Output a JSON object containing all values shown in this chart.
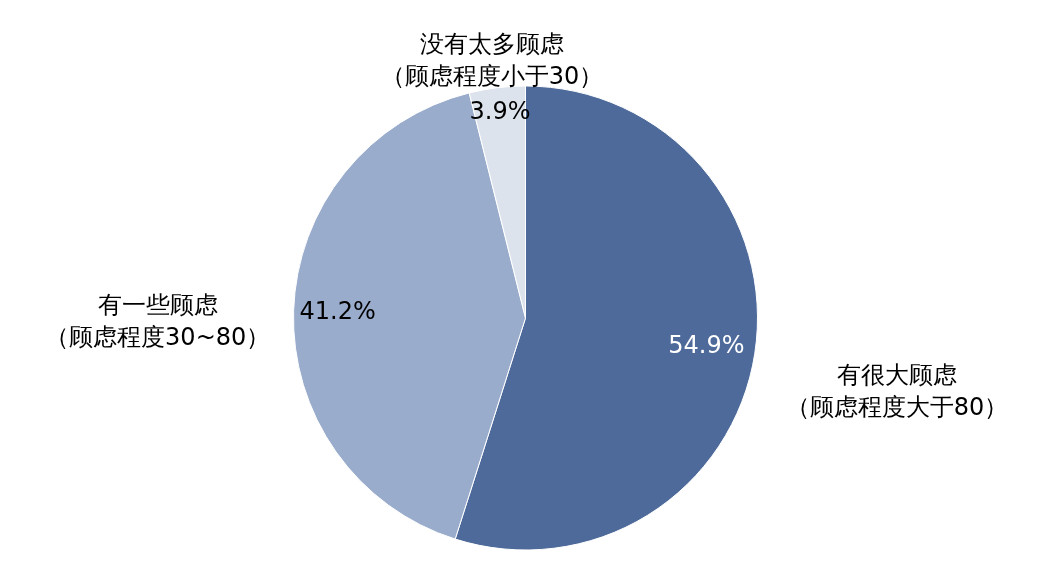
{
  "chart_data": {
    "type": "pie",
    "categories": [
      "有很大顾虑（顾虑程度大于80）",
      "有一些顾虑（顾虑程度30~80）",
      "没有太多顾虑（顾虑程度小于30）"
    ],
    "values": [
      54.9,
      41.2,
      3.9
    ],
    "colors": [
      "#4e6a9a",
      "#9aaccc",
      "#dde3ec"
    ],
    "value_labels": [
      "54.9%",
      "41.2%",
      "3.9%"
    ]
  }
}
